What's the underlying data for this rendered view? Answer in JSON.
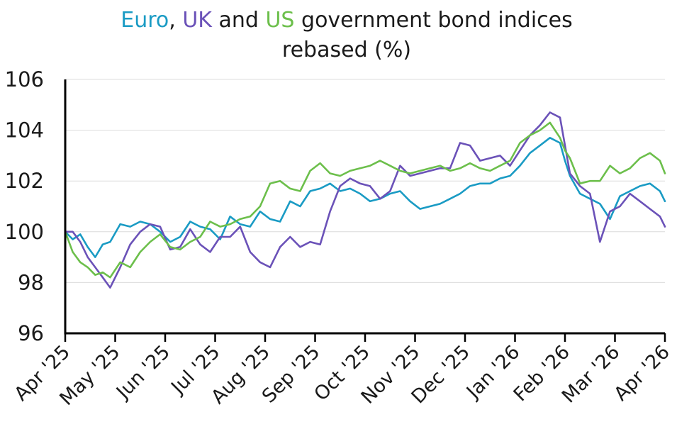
{
  "colors": {
    "euro": "#1a9bc4",
    "uk": "#6b52b8",
    "us": "#6cbf4b",
    "text": "#1a1a1a",
    "grid": "#dcdcdc",
    "axis": "#000000"
  },
  "chart_data": {
    "type": "line",
    "title_parts": [
      {
        "text": "Euro",
        "color_key": "euro"
      },
      {
        "text": ", ",
        "color_key": "text"
      },
      {
        "text": "UK",
        "color_key": "uk"
      },
      {
        "text": " and ",
        "color_key": "text"
      },
      {
        "text": "US",
        "color_key": "us"
      },
      {
        "text": " government bond indices",
        "color_key": "text"
      }
    ],
    "subtitle": "rebased (%)",
    "xlabel": "",
    "ylabel": "",
    "ylim": [
      96,
      106
    ],
    "yticks": [
      "96",
      "98",
      "100",
      "102",
      "104",
      "106"
    ],
    "y_tick_values": [
      96,
      98,
      100,
      102,
      104,
      106
    ],
    "x_categories": [
      "Apr '25",
      "May '25",
      "Jun '25",
      "Jul '25",
      "Aug '25",
      "Sep '25",
      "Oct '25",
      "Nov '25",
      "Dec '25",
      "Jan '26",
      "Feb '26",
      "Mar '26",
      "Apr '26"
    ],
    "grid": "horizontal",
    "legend": "none",
    "series": [
      {
        "key": "euro",
        "x": [
          0,
          0.15,
          0.3,
          0.45,
          0.6,
          0.75,
          0.9,
          1.1,
          1.3,
          1.5,
          1.7,
          1.9,
          2.1,
          2.3,
          2.5,
          2.7,
          2.9,
          3.1,
          3.3,
          3.5,
          3.7,
          3.9,
          4.1,
          4.3,
          4.5,
          4.7,
          4.9,
          5.1,
          5.3,
          5.5,
          5.7,
          5.9,
          6.1,
          6.3,
          6.5,
          6.7,
          6.9,
          7.1,
          7.3,
          7.5,
          7.7,
          7.9,
          8.1,
          8.3,
          8.5,
          8.7,
          8.9,
          9.1,
          9.3,
          9.5,
          9.7,
          9.9,
          10.0,
          10.1,
          10.3,
          10.5,
          10.7,
          10.9,
          11.1,
          11.3,
          11.5,
          11.7,
          11.9,
          12.0
        ],
        "values": [
          100.0,
          99.7,
          99.9,
          99.4,
          99.0,
          99.5,
          99.6,
          100.3,
          100.2,
          100.4,
          100.3,
          100.0,
          99.6,
          99.8,
          100.4,
          100.2,
          100.1,
          99.7,
          100.6,
          100.3,
          100.2,
          100.8,
          100.5,
          100.4,
          101.2,
          101.0,
          101.6,
          101.7,
          101.9,
          101.6,
          101.7,
          101.5,
          101.2,
          101.3,
          101.5,
          101.6,
          101.2,
          100.9,
          101.0,
          101.1,
          101.3,
          101.5,
          101.8,
          101.9,
          101.9,
          102.1,
          102.2,
          102.6,
          103.1,
          103.4,
          103.7,
          103.5,
          102.8,
          102.2,
          101.5,
          101.3,
          101.1,
          100.5,
          101.4,
          101.6,
          101.8,
          101.9,
          101.6,
          101.2
        ]
      },
      {
        "key": "uk",
        "x": [
          0,
          0.15,
          0.3,
          0.45,
          0.6,
          0.75,
          0.9,
          1.1,
          1.3,
          1.5,
          1.7,
          1.9,
          2.1,
          2.3,
          2.5,
          2.7,
          2.9,
          3.1,
          3.3,
          3.5,
          3.7,
          3.9,
          4.1,
          4.3,
          4.5,
          4.7,
          4.9,
          5.1,
          5.3,
          5.5,
          5.7,
          5.9,
          6.1,
          6.3,
          6.5,
          6.7,
          6.9,
          7.1,
          7.3,
          7.5,
          7.7,
          7.9,
          8.1,
          8.3,
          8.5,
          8.7,
          8.9,
          9.1,
          9.3,
          9.5,
          9.7,
          9.9,
          10.0,
          10.1,
          10.3,
          10.5,
          10.7,
          10.9,
          11.1,
          11.3,
          11.5,
          11.7,
          11.9,
          12.0
        ],
        "values": [
          100.0,
          100.0,
          99.6,
          99.0,
          98.6,
          98.2,
          97.8,
          98.6,
          99.5,
          100.0,
          100.3,
          100.2,
          99.3,
          99.4,
          100.1,
          99.5,
          99.2,
          99.8,
          99.8,
          100.2,
          99.2,
          98.8,
          98.6,
          99.4,
          99.8,
          99.4,
          99.6,
          99.5,
          100.8,
          101.8,
          102.1,
          101.9,
          101.8,
          101.3,
          101.6,
          102.6,
          102.2,
          102.3,
          102.4,
          102.5,
          102.5,
          103.5,
          103.4,
          102.8,
          102.9,
          103.0,
          102.6,
          103.2,
          103.8,
          104.2,
          104.7,
          104.5,
          103.4,
          102.3,
          101.8,
          101.5,
          99.6,
          100.8,
          101.0,
          101.5,
          101.2,
          100.9,
          100.6,
          100.2
        ]
      },
      {
        "key": "us",
        "x": [
          0,
          0.15,
          0.3,
          0.45,
          0.6,
          0.75,
          0.9,
          1.1,
          1.3,
          1.5,
          1.7,
          1.9,
          2.1,
          2.3,
          2.5,
          2.7,
          2.9,
          3.1,
          3.3,
          3.5,
          3.7,
          3.9,
          4.1,
          4.3,
          4.5,
          4.7,
          4.9,
          5.1,
          5.3,
          5.5,
          5.7,
          5.9,
          6.1,
          6.3,
          6.5,
          6.7,
          6.9,
          7.1,
          7.3,
          7.5,
          7.7,
          7.9,
          8.1,
          8.3,
          8.5,
          8.7,
          8.9,
          9.1,
          9.3,
          9.5,
          9.7,
          9.9,
          10.0,
          10.1,
          10.3,
          10.5,
          10.7,
          10.9,
          11.1,
          11.3,
          11.5,
          11.7,
          11.9,
          12.0
        ],
        "values": [
          100.0,
          99.2,
          98.8,
          98.6,
          98.3,
          98.4,
          98.2,
          98.8,
          98.6,
          99.2,
          99.6,
          99.9,
          99.4,
          99.3,
          99.6,
          99.8,
          100.4,
          100.2,
          100.3,
          100.5,
          100.6,
          101.0,
          101.9,
          102.0,
          101.7,
          101.6,
          102.4,
          102.7,
          102.3,
          102.2,
          102.4,
          102.5,
          102.6,
          102.8,
          102.6,
          102.4,
          102.3,
          102.4,
          102.5,
          102.6,
          102.4,
          102.5,
          102.7,
          102.5,
          102.4,
          102.6,
          102.8,
          103.5,
          103.8,
          104.0,
          104.3,
          103.7,
          103.2,
          102.9,
          101.9,
          102.0,
          102.0,
          102.6,
          102.3,
          102.5,
          102.9,
          103.1,
          102.8,
          102.3
        ]
      }
    ]
  }
}
